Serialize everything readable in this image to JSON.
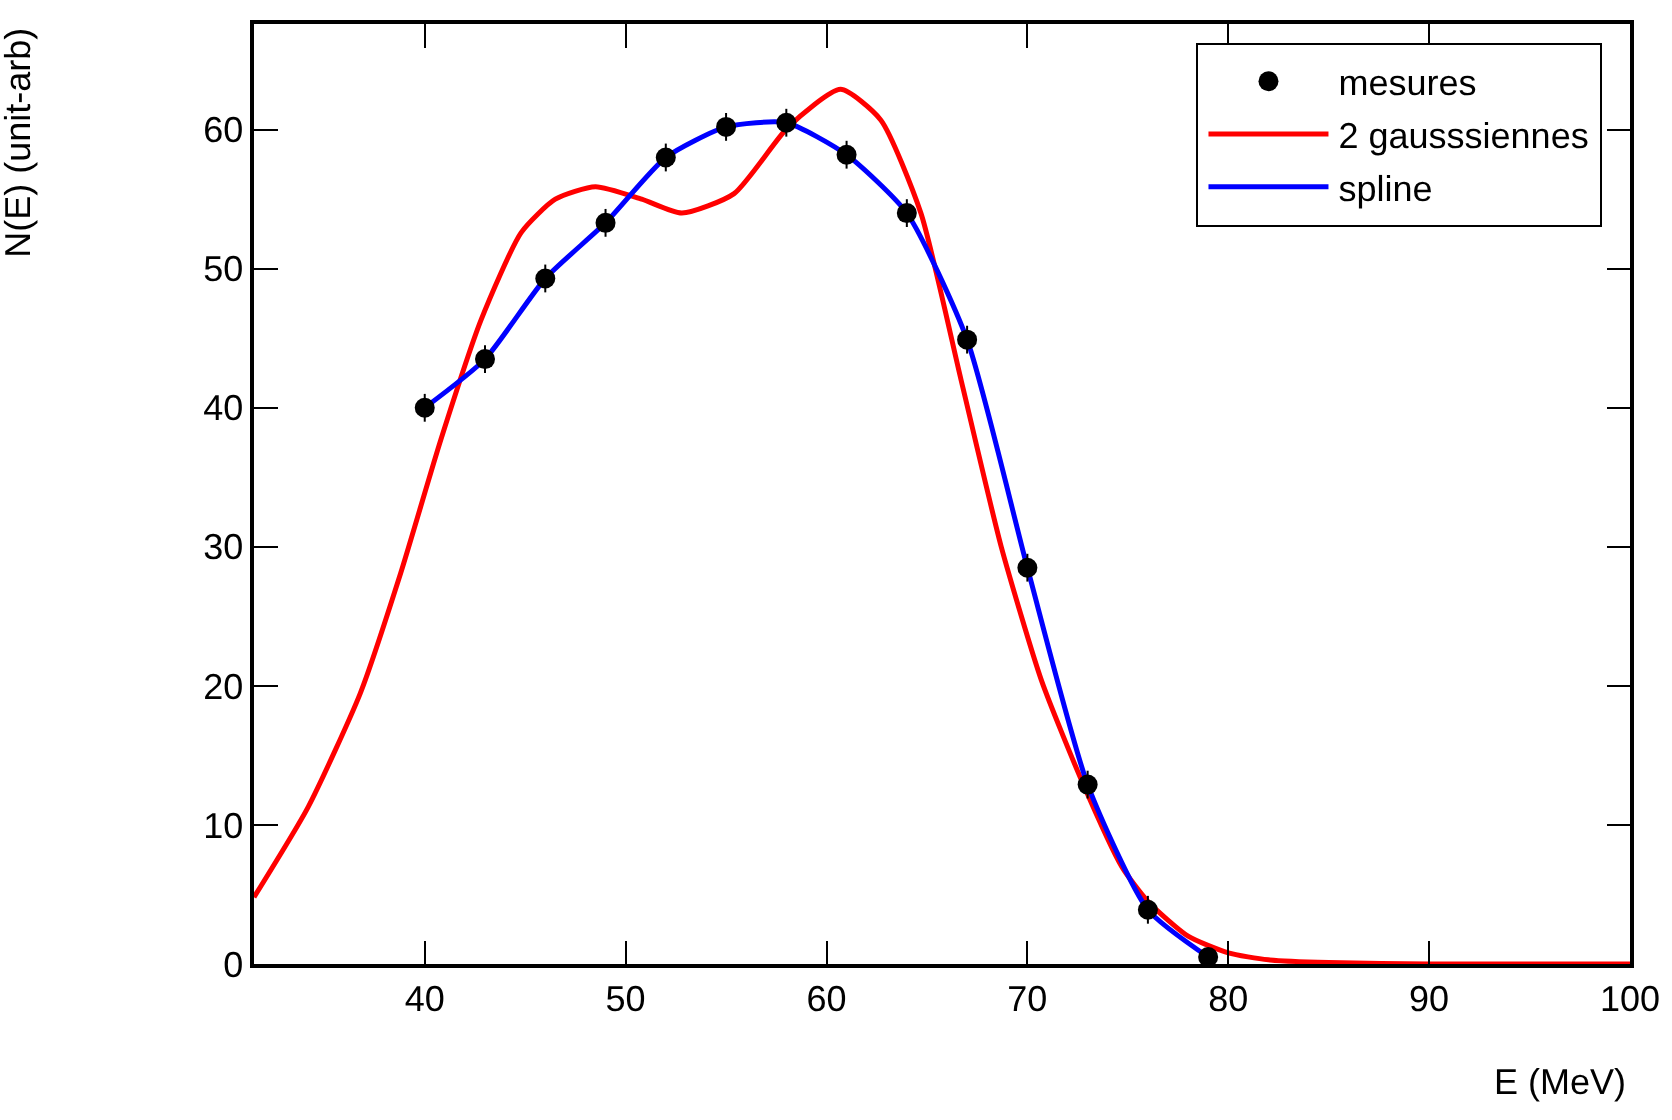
{
  "chart_data": {
    "type": "line",
    "xlabel": "E (MeV)",
    "ylabel": "N(E) (unit-arb)",
    "xlim": [
      31.5,
      100
    ],
    "ylim": [
      0,
      67.6
    ],
    "xticks": [
      40,
      50,
      60,
      70,
      80,
      90,
      100
    ],
    "yticks": [
      0,
      10,
      20,
      30,
      40,
      50,
      60
    ],
    "grid": false,
    "legend": "top right",
    "series": [
      {
        "name": "mesures",
        "type": "scatter",
        "marker": "circle",
        "color": "#000000",
        "x": [
          40,
          43,
          46,
          49,
          52,
          55,
          58,
          61,
          64,
          67,
          70,
          73,
          76,
          79
        ],
        "values": [
          40,
          43.5,
          49.3,
          53.3,
          58,
          60.2,
          60.5,
          58.2,
          54,
          44.9,
          28.5,
          12.9,
          3.9,
          0.5
        ],
        "errors": [
          1,
          1,
          1,
          1,
          1,
          1,
          1,
          1,
          1,
          1,
          1,
          1,
          1,
          0.5
        ]
      },
      {
        "name": "2 gausssiennes",
        "type": "line",
        "color": "#ff0000",
        "x": [
          31.5,
          34.2,
          36.8,
          38.8,
          40.8,
          42.8,
          44.8,
          46.5,
          48.5,
          50.8,
          52.8,
          55.4,
          58.1,
          60.7,
          62.7,
          64.7,
          66.7,
          68.7,
          70.7,
          72.7,
          74.7,
          76,
          78,
          80,
          82,
          85,
          90,
          100
        ],
        "values": [
          4.8,
          11.3,
          19.5,
          28.1,
          37.7,
          46.3,
          52.6,
          55,
          55.9,
          55,
          54,
          55.4,
          60.2,
          62.9,
          60.7,
          54,
          42,
          30,
          20.4,
          13.2,
          7,
          4.5,
          2,
          0.8,
          0.3,
          0.1,
          0,
          0
        ]
      },
      {
        "name": "spline",
        "type": "line",
        "color": "#0000ff",
        "x": [
          40,
          43,
          46,
          49,
          52,
          55,
          58,
          61,
          64,
          67,
          70,
          73,
          76,
          79
        ],
        "values": [
          40,
          43.5,
          49.3,
          53.3,
          58,
          60.2,
          60.5,
          58.2,
          54,
          44.9,
          28.5,
          12.9,
          3.9,
          0.5
        ]
      }
    ]
  }
}
